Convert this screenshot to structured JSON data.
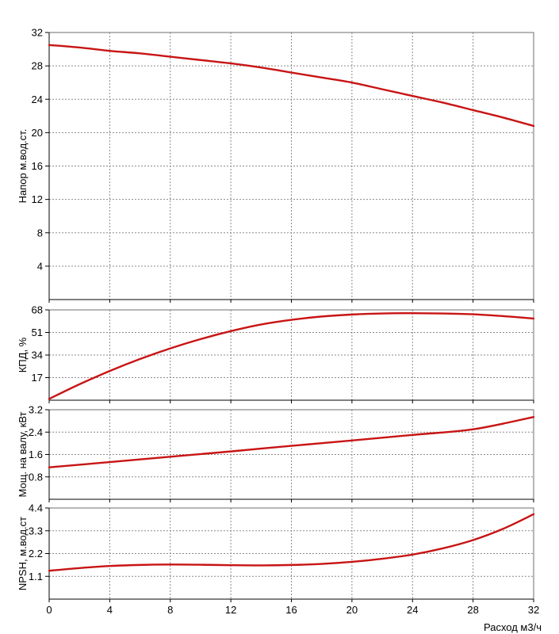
{
  "chart_data": [
    {
      "type": "line",
      "ylabel": "Напор м.вод.ст.",
      "xlim": [
        0,
        32
      ],
      "ylim": [
        0,
        32
      ],
      "yticks": [
        "4",
        "8",
        "12",
        "16",
        "20",
        "24",
        "28",
        "32"
      ],
      "series": [
        {
          "x": [
            0,
            2,
            4,
            6,
            8,
            10,
            12,
            14,
            16,
            18,
            20,
            22,
            24,
            26,
            28,
            30,
            32
          ],
          "y": [
            30.5,
            30.2,
            29.8,
            29.5,
            29.1,
            28.7,
            28.3,
            27.8,
            27.2,
            26.6,
            26.0,
            25.2,
            24.4,
            23.6,
            22.7,
            21.8,
            20.8
          ]
        }
      ]
    },
    {
      "type": "line",
      "ylabel": "КПД, %",
      "xlim": [
        0,
        32
      ],
      "ylim": [
        0,
        68
      ],
      "yticks": [
        "17",
        "34",
        "51",
        "68"
      ],
      "series": [
        {
          "x": [
            0,
            2,
            4,
            6,
            8,
            10,
            12,
            14,
            16,
            18,
            20,
            22,
            24,
            26,
            28,
            30,
            32
          ],
          "y": [
            1,
            12,
            22,
            31,
            39,
            46,
            52,
            57,
            60.5,
            63,
            64.5,
            65.3,
            65.5,
            65.3,
            64.7,
            63.3,
            61.5
          ]
        }
      ]
    },
    {
      "type": "line",
      "ylabel": "Мощ. на валу, кВт",
      "xlim": [
        0,
        32
      ],
      "ylim": [
        0,
        3.2
      ],
      "yticks": [
        "0.8",
        "1.6",
        "2.4",
        "3.2"
      ],
      "series": [
        {
          "x": [
            0,
            4,
            8,
            12,
            16,
            20,
            24,
            28,
            32
          ],
          "y": [
            1.14,
            1.33,
            1.52,
            1.71,
            1.91,
            2.1,
            2.3,
            2.5,
            2.94
          ]
        }
      ]
    },
    {
      "type": "line",
      "ylabel": "NPSH, м.вод.ст",
      "xlabel": "Расход м3/ч",
      "xlim": [
        0,
        32
      ],
      "ylim": [
        0,
        4.4
      ],
      "yticks": [
        "1.1",
        "2.2",
        "3.3",
        "4.4"
      ],
      "xticks": [
        "0",
        "4",
        "8",
        "12",
        "16",
        "20",
        "24",
        "28",
        "32"
      ],
      "series": [
        {
          "x": [
            0,
            2,
            4,
            6,
            8,
            10,
            12,
            14,
            16,
            18,
            20,
            22,
            24,
            26,
            28,
            30,
            32
          ],
          "y": [
            1.37,
            1.5,
            1.6,
            1.65,
            1.67,
            1.66,
            1.64,
            1.63,
            1.65,
            1.7,
            1.8,
            1.95,
            2.15,
            2.45,
            2.85,
            3.4,
            4.1
          ]
        }
      ]
    }
  ],
  "colors": {
    "curve": "#c81414",
    "grid": "#8a8a8a",
    "axis": "#000000"
  }
}
